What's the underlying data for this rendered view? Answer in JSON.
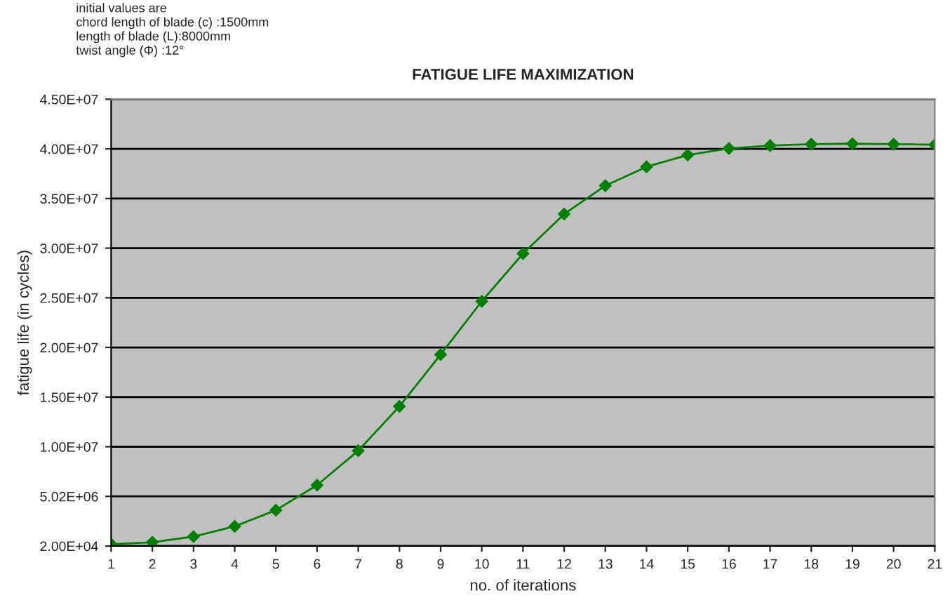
{
  "chart_data": {
    "type": "line",
    "title": "FATIGUE LIFE MAXIMIZATION",
    "xlabel": "no. of iterations",
    "ylabel": "fatigue life (in cycles)",
    "annotations": [
      "initial values are\nchord length of blade (c) :1500mm\nlength of blade (L):8000mm\ntwist angle (Φ) :12°"
    ],
    "x": [
      1,
      2,
      3,
      4,
      5,
      6,
      7,
      8,
      9,
      10,
      11,
      12,
      13,
      14,
      15,
      16,
      17,
      18,
      19,
      20,
      21
    ],
    "series": [
      {
        "color": "#008000",
        "values": [
          200000,
          400000,
          970000,
          2000000,
          3630000,
          6150000,
          9620000,
          14080000,
          19300000,
          24670000,
          29470000,
          33460000,
          36310000,
          38210000,
          39400000,
          40060000,
          40350000,
          40490000,
          40540000,
          40490000,
          40440000
        ]
      }
    ],
    "xlim": [
      1,
      21
    ],
    "xticks": [
      1,
      2,
      3,
      4,
      5,
      6,
      7,
      8,
      9,
      10,
      11,
      12,
      13,
      14,
      15,
      16,
      17,
      18,
      19,
      20,
      21
    ],
    "ylim": [
      20000,
      45020000
    ],
    "yticks": [
      {
        "value": 20000,
        "label": "2.00E+04"
      },
      {
        "value": 5020000,
        "label": "5.02E+06"
      },
      {
        "value": 10020000,
        "label": "1.00E+07"
      },
      {
        "value": 15020000,
        "label": "1.50E+07"
      },
      {
        "value": 20020000,
        "label": "2.00E+07"
      },
      {
        "value": 25020000,
        "label": "2.50E+07"
      },
      {
        "value": 30020000,
        "label": "3.00E+07"
      },
      {
        "value": 35020000,
        "label": "3.50E+07"
      },
      {
        "value": 40020000,
        "label": "4.00E+07"
      },
      {
        "value": 45020000,
        "label": "4.50E+07"
      }
    ],
    "grid": "y",
    "marker": "diamond",
    "line_style": "solid"
  }
}
